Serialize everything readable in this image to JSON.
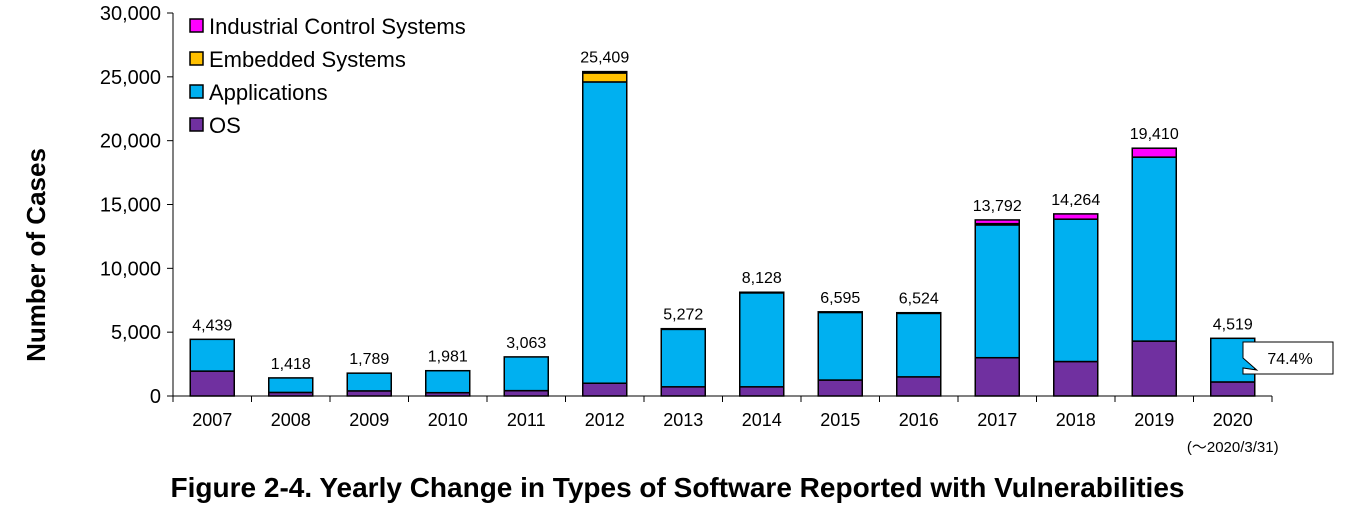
{
  "caption": "Figure 2-4. Yearly Change in Types of Software Reported with Vulnerabilities",
  "chart_data": {
    "type": "bar",
    "stacked": true,
    "title": "",
    "xlabel": "",
    "ylabel": "Number of Cases",
    "ylim": [
      0,
      30000
    ],
    "yticks": [
      "0",
      "5,000",
      "10,000",
      "15,000",
      "20,000",
      "25,000",
      "30,000"
    ],
    "ytick_values": [
      0,
      5000,
      10000,
      15000,
      20000,
      25000,
      30000
    ],
    "categories": [
      "2007",
      "2008",
      "2009",
      "2010",
      "2011",
      "2012",
      "2013",
      "2014",
      "2015",
      "2016",
      "2017",
      "2018",
      "2019",
      "2020"
    ],
    "category_sublabels": [
      "",
      "",
      "",
      "",
      "",
      "",
      "",
      "",
      "",
      "",
      "",
      "",
      "",
      "(～2020/3/31)"
    ],
    "series": [
      {
        "name": "OS",
        "color": "#7030A0",
        "values": [
          1950,
          280,
          400,
          260,
          420,
          1000,
          720,
          720,
          1250,
          1500,
          3000,
          2700,
          4300,
          1100
        ]
      },
      {
        "name": "Applications",
        "color": "#00B0F0",
        "values": [
          2489,
          1138,
          1389,
          1721,
          2643,
          23600,
          4502,
          7358,
          5295,
          4974,
          10400,
          11150,
          14410,
          3419
        ]
      },
      {
        "name": "Embedded Systems",
        "color": "#FFC000",
        "values": [
          0,
          0,
          0,
          0,
          0,
          700,
          0,
          0,
          0,
          0,
          100,
          0,
          0,
          0
        ]
      },
      {
        "name": "Industrial Control Systems",
        "color": "#FF00FF",
        "values": [
          0,
          0,
          0,
          0,
          0,
          109,
          50,
          50,
          50,
          50,
          292,
          414,
          700,
          0
        ]
      }
    ],
    "totals": [
      "4,439",
      "1,418",
      "1,789",
      "1,981",
      "3,063",
      "25,409",
      "5,272",
      "8,128",
      "6,595",
      "6,524",
      "13,792",
      "14,264",
      "19,410",
      "4,519"
    ],
    "legend_position": "top-left",
    "legend_order": [
      "Industrial Control Systems",
      "Embedded Systems",
      "Applications",
      "OS"
    ],
    "annotation": {
      "text": "74.4%",
      "category": "2020"
    },
    "grid": false
  }
}
